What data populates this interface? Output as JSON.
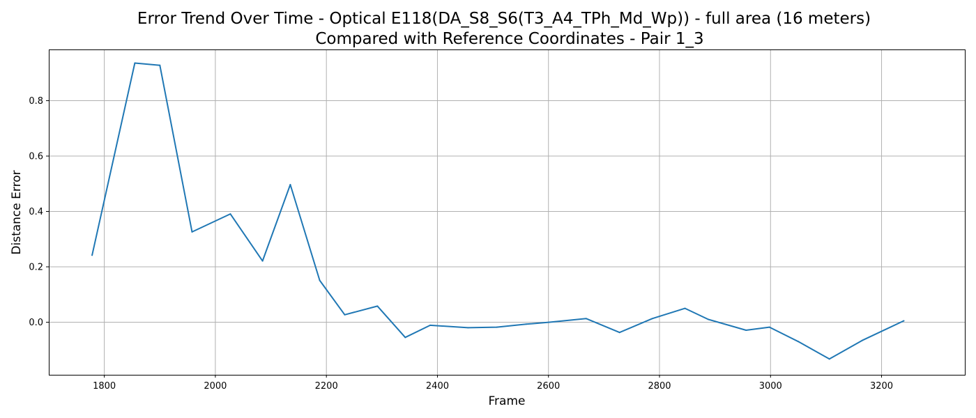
{
  "chart_data": {
    "type": "line",
    "title": "Error Trend Over Time - Optical E118(DA_S8_S6(T3_A4_TPh_Md_Wp)) - full area (16 meters)",
    "subtitle": "Compared with Reference Coordinates - Pair 1_3",
    "xlabel": "Frame",
    "ylabel": "Distance Error",
    "xlim": [
      1700,
      3350
    ],
    "ylim": [
      -0.19,
      0.985
    ],
    "xticks": [
      1800,
      2000,
      2200,
      2400,
      2600,
      2800,
      3000,
      3200
    ],
    "yticks": [
      0.0,
      0.2,
      0.4,
      0.6,
      0.8
    ],
    "grid": true,
    "series": [
      {
        "color": "#1f77b4",
        "x": [
          1778,
          1855,
          1900,
          1958,
          2027,
          2085,
          2135,
          2188,
          2233,
          2292,
          2342,
          2387,
          2455,
          2507,
          2560,
          2602,
          2668,
          2728,
          2787,
          2846,
          2888,
          2956,
          2998,
          3050,
          3106,
          3165,
          3240
        ],
        "y": [
          0.242,
          0.936,
          0.928,
          0.326,
          0.391,
          0.221,
          0.497,
          0.151,
          0.027,
          0.058,
          -0.055,
          -0.011,
          -0.02,
          -0.018,
          -0.007,
          0.0,
          0.013,
          -0.037,
          0.013,
          0.05,
          0.01,
          -0.029,
          -0.018,
          -0.07,
          -0.133,
          -0.066,
          0.005
        ]
      }
    ]
  }
}
